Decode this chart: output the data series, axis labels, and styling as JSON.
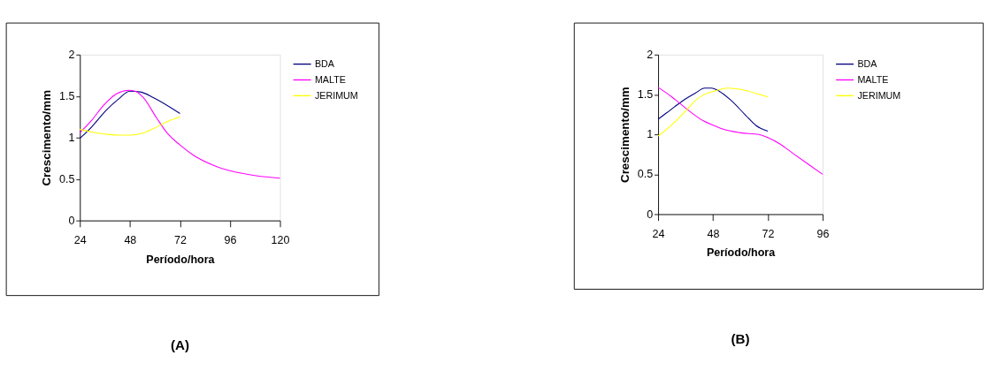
{
  "chart_data": [
    {
      "type": "line",
      "xlabel": "Período/hora",
      "ylabel": "Crescimento/mm",
      "annotations": [
        "(A)"
      ],
      "legend": "right",
      "grid": false,
      "line_style": "solid",
      "marker": "none",
      "xlim": [
        24,
        120
      ],
      "xticks": [
        24,
        48,
        72,
        96,
        120
      ],
      "ylim": [
        0,
        2
      ],
      "yticks": [
        0,
        0.5,
        1,
        1.5,
        2
      ],
      "series": [
        {
          "name": "BDA",
          "color": "#000080",
          "x": [
            24,
            29.7,
            36.6,
            42.3,
            48,
            53,
            59.4,
            72
          ],
          "values": [
            0.99,
            1.13,
            1.33,
            1.46,
            1.56,
            1.55,
            1.48,
            1.29
          ]
        },
        {
          "name": "MALTE",
          "color": "#ff00ff",
          "x": [
            24,
            29.7,
            35.4,
            41.7,
            47.4,
            50.5,
            54.5,
            60.7,
            65.7,
            72,
            78.3,
            89.7,
            96,
            108.6,
            120
          ],
          "values": [
            1.06,
            1.21,
            1.39,
            1.53,
            1.57,
            1.56,
            1.48,
            1.24,
            1.06,
            0.91,
            0.79,
            0.65,
            0.6,
            0.54,
            0.51
          ]
        },
        {
          "name": "JERIMUM",
          "color": "#ffff00",
          "x": [
            24,
            29,
            36.6,
            41.7,
            48,
            53.7,
            59.4,
            65.7,
            72
          ],
          "values": [
            1.1,
            1.07,
            1.04,
            1.03,
            1.03,
            1.05,
            1.11,
            1.19,
            1.25
          ]
        }
      ]
    },
    {
      "type": "line",
      "xlabel": "Período/hora",
      "ylabel": "Crescimento/mm",
      "annotations": [
        "(B)"
      ],
      "legend": "right",
      "grid": false,
      "line_style": "solid",
      "marker": "none",
      "xlim": [
        24,
        96
      ],
      "xticks": [
        24,
        48,
        72,
        96
      ],
      "ylim": [
        0,
        2
      ],
      "yticks": [
        0,
        0.5,
        1,
        1.5,
        2
      ],
      "series": [
        {
          "name": "BDA",
          "color": "#000080",
          "x": [
            24,
            27.7,
            32.3,
            36.3,
            40.4,
            44.4,
            47.3,
            50.8,
            55.4,
            62.3,
            66.9,
            72
          ],
          "values": [
            1.19,
            1.27,
            1.37,
            1.45,
            1.52,
            1.58,
            1.58,
            1.54,
            1.44,
            1.24,
            1.11,
            1.04
          ]
        },
        {
          "name": "MALTE",
          "color": "#ff00ff",
          "x": [
            24,
            30,
            36.9,
            43.8,
            48.5,
            51.9,
            60,
            68.1,
            72,
            77.3,
            83.1,
            90,
            96
          ],
          "values": [
            1.59,
            1.47,
            1.31,
            1.17,
            1.11,
            1.07,
            1.02,
            1.0,
            0.96,
            0.88,
            0.76,
            0.62,
            0.5
          ]
        },
        {
          "name": "JERIMUM",
          "color": "#ffff00",
          "x": [
            24,
            30,
            36.9,
            40.9,
            45,
            49.6,
            54.2,
            72
          ],
          "values": [
            0.98,
            1.12,
            1.32,
            1.44,
            1.51,
            1.55,
            1.58,
            1.47
          ]
        }
      ]
    }
  ]
}
